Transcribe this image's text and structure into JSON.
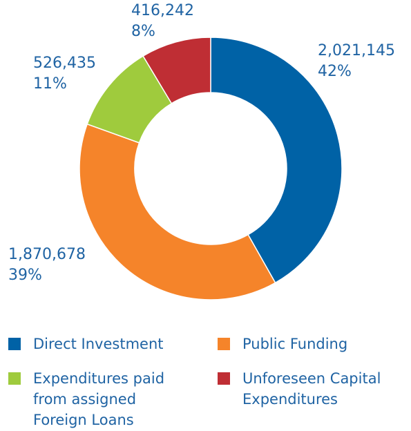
{
  "chart_data": {
    "type": "donut",
    "categories": [
      "Direct Investment",
      "Public Funding",
      "Expenditures paid from assigned Foreign Loans",
      "Unforeseen Capital Expenditures"
    ],
    "values": [
      2021145,
      1870678,
      526435,
      416242
    ],
    "value_labels": [
      "2,021,145",
      "1,870,678",
      "526,435",
      "416,242"
    ],
    "percents": [
      42,
      39,
      11,
      8
    ],
    "percent_labels": [
      "42%",
      "39%",
      "11%",
      "8%"
    ],
    "colors": [
      "#0062a6",
      "#f5842a",
      "#9fcb3d",
      "#bf2e34"
    ],
    "legend": true
  }
}
